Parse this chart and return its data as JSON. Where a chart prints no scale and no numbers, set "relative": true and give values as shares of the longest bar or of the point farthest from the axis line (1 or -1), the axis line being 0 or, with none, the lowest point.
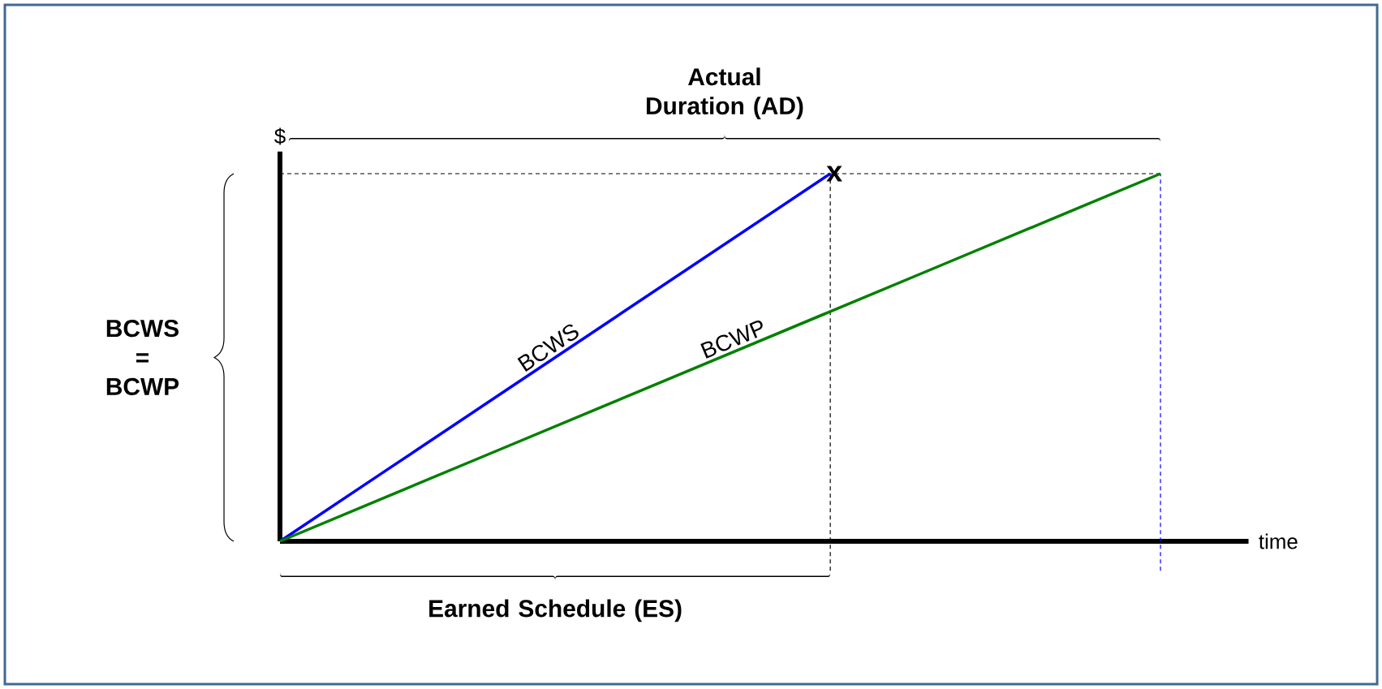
{
  "chart_data": {
    "type": "line",
    "relative": true,
    "xlabel": "time",
    "ylabel": "$",
    "categories": [
      null,
      null,
      null,
      null,
      null,
      null,
      null,
      null,
      null
    ],
    "series": [
      {
        "name": "BCWS",
        "color": "#0000ff",
        "values": [
          0,
          0.2,
          0.4,
          0.6,
          0.8,
          1,
          null,
          null,
          null
        ]
      },
      {
        "name": "BCWP",
        "color": "#008000",
        "values": [
          0,
          0.125,
          0.25,
          0.375,
          0.5,
          0.625,
          0.75,
          0.875,
          1
        ]
      }
    ],
    "ref_lines": [
      {
        "axis": "y",
        "value": 1,
        "color": "#000000",
        "line_style": "dashed"
      }
    ],
    "annotations": [
      "x",
      "Actual Duration (AD)",
      "BCWS = BCWP",
      "Earned Schedule (ES)"
    ]
  }
}
